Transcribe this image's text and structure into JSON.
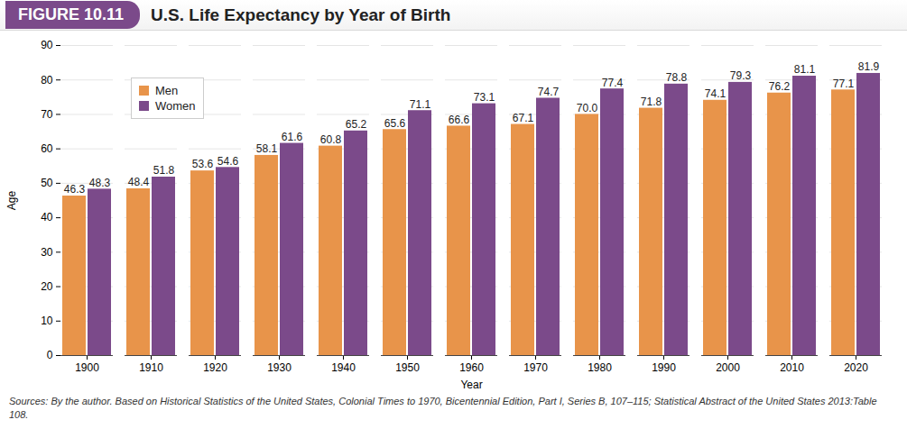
{
  "chart_data": {
    "type": "bar",
    "figure_label": "FIGURE 10.11",
    "title": "U.S. Life Expectancy by Year of Birth",
    "x_label": "Year",
    "y_label": "Age",
    "source": "Sources: By the author. Based on Historical Statistics of the United States, Colonial Times to 1970, Bicentennial Edition, Part I, Series B, 107–115; Statistical Abstract of the United States 2013:Table 108.",
    "categories": [
      "1900",
      "1910",
      "1920",
      "1930",
      "1940",
      "1950",
      "1960",
      "1970",
      "1980",
      "1990",
      "2000",
      "2010",
      "2020"
    ],
    "series": [
      {
        "name": "Men",
        "color": "#e8944a",
        "values": [
          46.3,
          48.4,
          53.6,
          58.1,
          60.8,
          65.6,
          66.6,
          67.1,
          70.0,
          71.8,
          74.1,
          76.2,
          77.1
        ],
        "value_labels": [
          "46.3",
          "48.4",
          "53.6",
          "58.1",
          "60.8",
          "65.6",
          "66.6",
          "67.1",
          "70.0",
          "71.8",
          "74.1",
          "76.2",
          "77.1"
        ]
      },
      {
        "name": "Women",
        "color": "#7b4a8a",
        "values": [
          48.3,
          51.8,
          54.6,
          61.6,
          65.2,
          71.1,
          73.1,
          74.7,
          77.4,
          78.8,
          79.3,
          81.1,
          81.9
        ],
        "value_labels": [
          "48.3",
          "51.8",
          "54.6",
          "61.6",
          "65.2",
          "71.1",
          "73.1",
          "74.7",
          "77.4",
          "78.8",
          "79.3",
          "81.1",
          "81.9"
        ]
      }
    ],
    "ylim": [
      0,
      90
    ],
    "yticks": [
      0,
      10,
      20,
      30,
      40,
      50,
      60,
      70,
      80,
      90
    ],
    "grid": true,
    "legend": "upper left",
    "data_labels": true
  }
}
